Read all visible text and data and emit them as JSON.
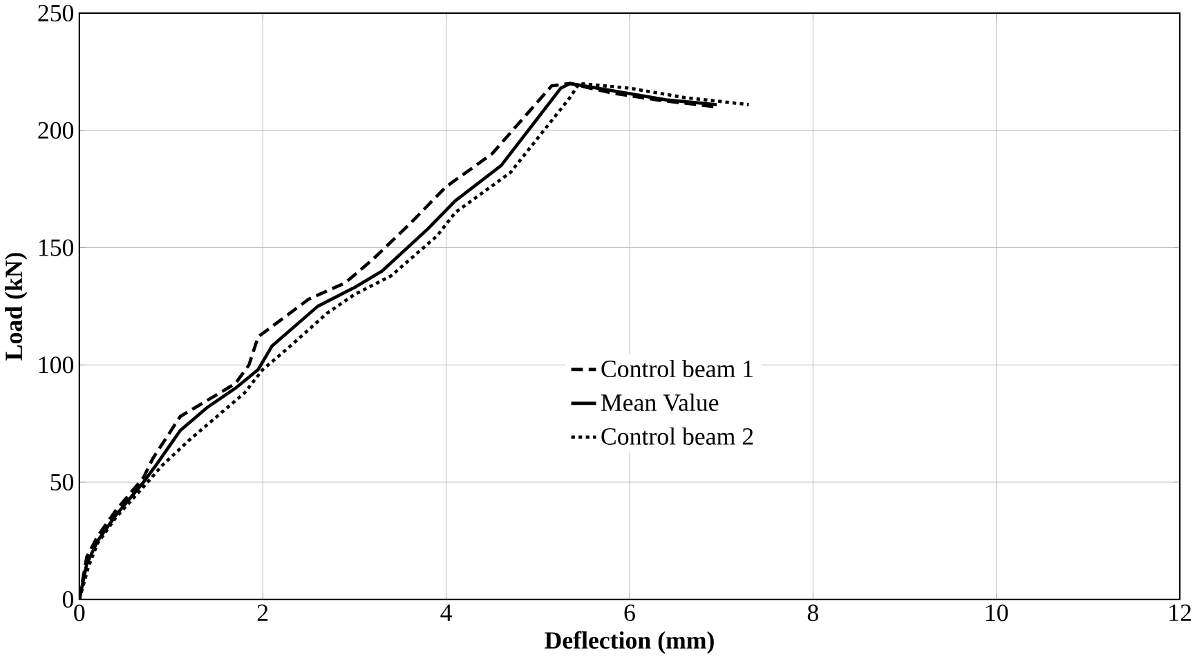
{
  "chart_data": {
    "type": "line",
    "xlabel": "Deflection (mm)",
    "ylabel": "Load (kN)",
    "xlim": [
      0,
      12
    ],
    "ylim": [
      0,
      250
    ],
    "xticks": [
      0,
      2,
      4,
      6,
      8,
      10,
      12
    ],
    "yticks": [
      0,
      50,
      100,
      150,
      200,
      250
    ],
    "grid": true,
    "legend": "center",
    "series": [
      {
        "name": "Control beam 1",
        "color": "#000000",
        "line_style": "dashed",
        "x": [
          0,
          0.08,
          0.2,
          0.4,
          0.7,
          0.8,
          1.1,
          1.4,
          1.7,
          1.85,
          1.95,
          2.5,
          2.9,
          3.2,
          3.6,
          4.0,
          4.5,
          5.15,
          5.35,
          5.8,
          6.3,
          6.95
        ],
        "values": [
          0,
          18,
          27,
          38,
          52,
          60,
          78,
          85,
          92,
          100,
          112,
          128,
          135,
          145,
          160,
          176,
          190,
          219,
          220,
          216,
          213,
          210
        ]
      },
      {
        "name": "Mean Value",
        "color": "#000000",
        "line_style": "solid",
        "x": [
          0,
          0.08,
          0.2,
          0.4,
          0.7,
          0.85,
          1.1,
          1.4,
          1.7,
          1.95,
          2.1,
          2.6,
          3.0,
          3.3,
          3.8,
          4.1,
          4.6,
          5.25,
          5.35,
          5.8,
          6.4,
          6.95
        ],
        "values": [
          0,
          15,
          25,
          36,
          50,
          58,
          72,
          82,
          90,
          98,
          108,
          125,
          133,
          140,
          158,
          170,
          185,
          218,
          220,
          217,
          213,
          211
        ]
      },
      {
        "name": "Control beam 2",
        "color": "#000000",
        "line_style": "dotted",
        "x": [
          0,
          0.1,
          0.2,
          0.4,
          0.7,
          0.9,
          1.2,
          1.5,
          1.8,
          2.0,
          2.3,
          2.7,
          3.0,
          3.4,
          3.9,
          4.1,
          4.7,
          5.35,
          5.45,
          6.0,
          6.6,
          7.3
        ],
        "values": [
          0,
          14,
          24,
          35,
          48,
          57,
          68,
          78,
          88,
          98,
          108,
          122,
          130,
          138,
          155,
          165,
          182,
          214,
          220,
          218,
          214,
          211
        ]
      }
    ]
  }
}
